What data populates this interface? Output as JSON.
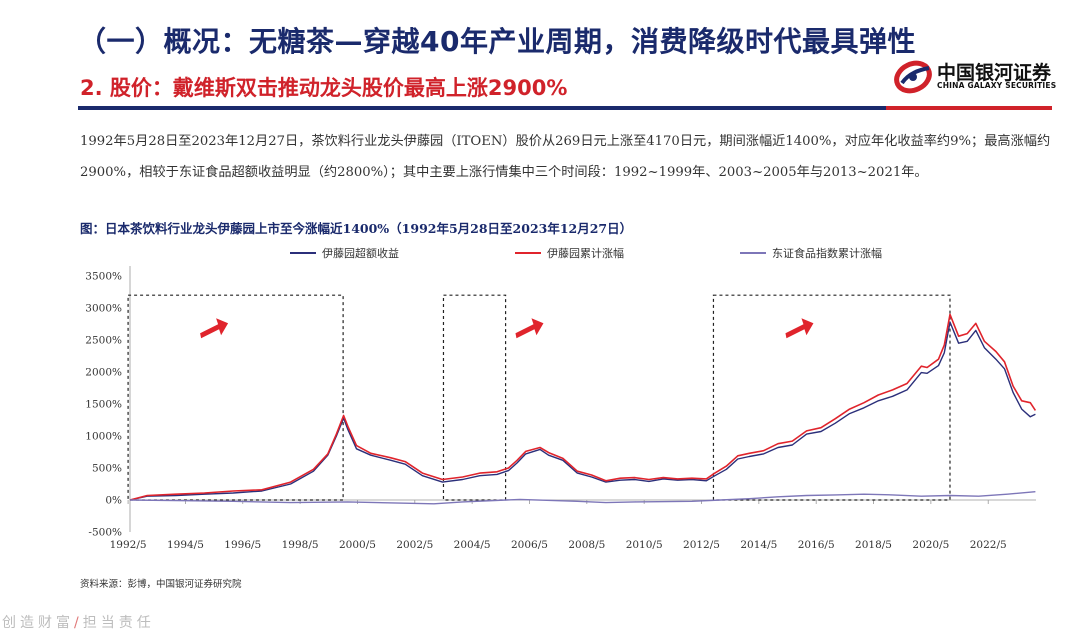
{
  "header": {
    "title": "（一）概况：无糖茶—穿越40年产业周期，消费降级时代最具弹性",
    "subtitle": "2. 股价：戴维斯双击推动龙头股价最高上涨2900%",
    "logo_cn": "中国银河证券",
    "logo_en": "CHINA GALAXY SECURITIES",
    "colors": {
      "navy": "#1a2a6c",
      "red": "#d0222a"
    }
  },
  "body": {
    "paragraph": "1992年5月28日至2023年12月27日，茶饮料行业龙头伊藤园（ITOEN）股价从269日元上涨至4170日元，期间涨幅近1400%，对应年化收益率约9%；最高涨幅约2900%，相较于东证食品超额收益明显（约2800%）；其中主要上涨行情集中三个时间段：1992~1999年、2003~2005年与2013~2021年。"
  },
  "figure": {
    "caption": "图：日本茶饮料行业龙头伊藤园上市至今涨幅近1400%（1992年5月28日至2023年12月27日）",
    "source": "资料来源：彭博，中国银河证券研究院"
  },
  "chart_data": {
    "type": "line",
    "ylim": [
      -500,
      3500
    ],
    "y_ticks": [
      "-500%",
      "0%",
      "500%",
      "1000%",
      "1500%",
      "2000%",
      "2500%",
      "3000%",
      "3500%"
    ],
    "x_ticks": [
      "1992/5",
      "1994/5",
      "1996/5",
      "1998/5",
      "2000/5",
      "2002/5",
      "2004/5",
      "2006/5",
      "2008/5",
      "2010/5",
      "2012/5",
      "2014/5",
      "2016/5",
      "2018/5",
      "2020/5",
      "2022/5"
    ],
    "legend_position": "top",
    "highlight_periods": [
      [
        "1992/5",
        "1999/11"
      ],
      [
        "2003/5",
        "2005/7"
      ],
      [
        "2012/10",
        "2021/1"
      ]
    ],
    "series": [
      {
        "name": "伊藤园超额收益",
        "color": "#2b2f7a",
        "x": [
          1992.4,
          1993.0,
          1994.0,
          1995.0,
          1996.0,
          1997.0,
          1998.0,
          1998.8,
          1999.3,
          1999.6,
          1999.85,
          2000.0,
          2000.3,
          2000.8,
          2001.5,
          2002.0,
          2002.6,
          2003.3,
          2004.0,
          2004.6,
          2005.2,
          2005.6,
          2005.9,
          2006.2,
          2006.7,
          2007.0,
          2007.5,
          2008.0,
          2008.5,
          2009.0,
          2009.5,
          2010.0,
          2010.5,
          2011.0,
          2011.5,
          2012.0,
          2012.5,
          2012.8,
          2013.2,
          2013.6,
          2014.0,
          2014.5,
          2015.0,
          2015.5,
          2016.0,
          2016.5,
          2017.0,
          2017.5,
          2018.0,
          2018.5,
          2019.0,
          2019.5,
          2020.0,
          2020.2,
          2020.6,
          2020.8,
          2021.0,
          2021.3,
          2021.6,
          2021.9,
          2022.2,
          2022.6,
          2022.9,
          2023.2,
          2023.5,
          2023.8,
          2023.98
        ],
        "values": [
          0,
          60,
          70,
          90,
          110,
          140,
          250,
          450,
          700,
          1000,
          1280,
          1100,
          800,
          700,
          620,
          560,
          380,
          280,
          320,
          380,
          400,
          460,
          580,
          720,
          790,
          700,
          620,
          420,
          360,
          280,
          310,
          320,
          290,
          330,
          310,
          320,
          300,
          380,
          480,
          640,
          680,
          720,
          820,
          860,
          1030,
          1070,
          1200,
          1350,
          1440,
          1550,
          1620,
          1720,
          1990,
          1980,
          2100,
          2300,
          2780,
          2450,
          2480,
          2650,
          2380,
          2200,
          2050,
          1680,
          1420,
          1300,
          1340
        ]
      },
      {
        "name": "伊藤园累计涨幅",
        "color": "#e0242c",
        "x": [
          1992.4,
          1993.0,
          1994.0,
          1995.0,
          1996.0,
          1997.0,
          1998.0,
          1998.8,
          1999.3,
          1999.6,
          1999.85,
          2000.0,
          2000.3,
          2000.8,
          2001.5,
          2002.0,
          2002.6,
          2003.3,
          2004.0,
          2004.6,
          2005.2,
          2005.6,
          2005.9,
          2006.2,
          2006.7,
          2007.0,
          2007.5,
          2008.0,
          2008.5,
          2009.0,
          2009.5,
          2010.0,
          2010.5,
          2011.0,
          2011.5,
          2012.0,
          2012.5,
          2012.8,
          2013.2,
          2013.6,
          2014.0,
          2014.5,
          2015.0,
          2015.5,
          2016.0,
          2016.5,
          2017.0,
          2017.5,
          2018.0,
          2018.5,
          2019.0,
          2019.5,
          2020.0,
          2020.2,
          2020.6,
          2020.8,
          2021.0,
          2021.3,
          2021.6,
          2021.9,
          2022.2,
          2022.6,
          2022.9,
          2023.2,
          2023.5,
          2023.8,
          2023.98
        ],
        "values": [
          0,
          70,
          90,
          110,
          140,
          160,
          280,
          480,
          720,
          1030,
          1320,
          1150,
          850,
          730,
          660,
          600,
          420,
          320,
          360,
          420,
          440,
          500,
          620,
          760,
          820,
          740,
          650,
          450,
          390,
          300,
          340,
          350,
          320,
          350,
          330,
          340,
          330,
          420,
          530,
          690,
          730,
          770,
          880,
          920,
          1080,
          1130,
          1270,
          1420,
          1520,
          1640,
          1720,
          1820,
          2090,
          2070,
          2200,
          2420,
          2900,
          2560,
          2600,
          2760,
          2480,
          2320,
          2160,
          1780,
          1550,
          1520,
          1400
        ]
      },
      {
        "name": "东证食品指数累计涨幅",
        "color": "#7d76b8",
        "x": [
          1992.4,
          1994.0,
          1996.0,
          1998.0,
          2000.0,
          2002.0,
          2003.0,
          2004.0,
          2006.0,
          2008.0,
          2009.0,
          2010.0,
          2012.0,
          2013.0,
          2014.0,
          2015.0,
          2016.0,
          2017.0,
          2018.0,
          2019.0,
          2020.0,
          2021.0,
          2022.0,
          2023.0,
          2023.98
        ],
        "values": [
          0,
          -10,
          -20,
          -40,
          -30,
          -50,
          -60,
          -30,
          10,
          -20,
          -40,
          -30,
          -20,
          0,
          20,
          50,
          70,
          80,
          90,
          80,
          60,
          70,
          60,
          90,
          130
        ]
      }
    ]
  },
  "footer": {
    "left": "创造财富",
    "slash": "/",
    "right": "担当责任"
  }
}
